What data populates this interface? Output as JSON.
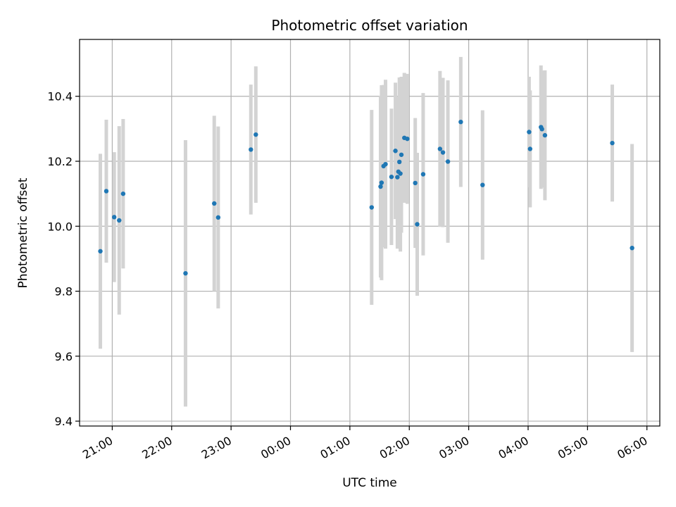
{
  "chart_data": {
    "type": "scatter",
    "title": "Photometric offset variation",
    "xlabel": "UTC time",
    "ylabel": "Photometric offset",
    "xlim": [
      "20:27",
      "06:13"
    ],
    "ylim": [
      9.385,
      10.575
    ],
    "x_ticks": [
      "21:00",
      "22:00",
      "23:00",
      "00:00",
      "01:00",
      "02:00",
      "03:00",
      "04:00",
      "05:00",
      "06:00"
    ],
    "y_ticks": [
      9.4,
      9.6,
      9.8,
      10.0,
      10.2,
      10.4
    ],
    "y_tick_labels": [
      "9.4",
      "9.6",
      "9.8",
      "10.0",
      "10.2",
      "10.4"
    ],
    "grid": true,
    "point_color": "#1f77b4",
    "errorbar_color": "#d3d3d3",
    "points": [
      {
        "x": "20:48",
        "y": 9.923,
        "err": 0.3
      },
      {
        "x": "20:54",
        "y": 10.108,
        "err": 0.22
      },
      {
        "x": "21:02",
        "y": 10.028,
        "err": 0.2
      },
      {
        "x": "21:07",
        "y": 10.018,
        "err": 0.29
      },
      {
        "x": "21:11",
        "y": 10.1,
        "err": 0.23
      },
      {
        "x": "22:14",
        "y": 9.855,
        "err": 0.41
      },
      {
        "x": "22:43",
        "y": 10.07,
        "err": 0.27
      },
      {
        "x": "22:47",
        "y": 10.027,
        "err": 0.28
      },
      {
        "x": "23:20",
        "y": 10.236,
        "err": 0.2
      },
      {
        "x": "23:25",
        "y": 10.282,
        "err": 0.21
      },
      {
        "x": "01:22",
        "y": 10.058,
        "err": 0.3
      },
      {
        "x": "01:31",
        "y": 10.122,
        "err": 0.28
      },
      {
        "x": "01:32",
        "y": 10.134,
        "err": 0.3
      },
      {
        "x": "01:34",
        "y": 10.185,
        "err": 0.25
      },
      {
        "x": "01:36",
        "y": 10.191,
        "err": 0.26
      },
      {
        "x": "01:42",
        "y": 10.152,
        "err": 0.21
      },
      {
        "x": "01:46",
        "y": 10.232,
        "err": 0.21
      },
      {
        "x": "01:48",
        "y": 10.151,
        "err": 0.22
      },
      {
        "x": "01:49",
        "y": 10.168,
        "err": 0.23
      },
      {
        "x": "01:50",
        "y": 10.198,
        "err": 0.26
      },
      {
        "x": "01:51",
        "y": 10.162,
        "err": 0.24
      },
      {
        "x": "01:52",
        "y": 10.22,
        "err": 0.24
      },
      {
        "x": "01:55",
        "y": 10.272,
        "err": 0.2
      },
      {
        "x": "01:58",
        "y": 10.269,
        "err": 0.2
      },
      {
        "x": "02:06",
        "y": 10.133,
        "err": 0.2
      },
      {
        "x": "02:08",
        "y": 10.006,
        "err": 0.22
      },
      {
        "x": "02:14",
        "y": 10.16,
        "err": 0.25
      },
      {
        "x": "02:31",
        "y": 10.238,
        "err": 0.24
      },
      {
        "x": "02:34",
        "y": 10.227,
        "err": 0.23
      },
      {
        "x": "02:39",
        "y": 10.199,
        "err": 0.25
      },
      {
        "x": "02:52",
        "y": 10.321,
        "err": 0.2
      },
      {
        "x": "03:14",
        "y": 10.127,
        "err": 0.23
      },
      {
        "x": "04:01",
        "y": 10.29,
        "err": 0.17
      },
      {
        "x": "04:02",
        "y": 10.238,
        "err": 0.18
      },
      {
        "x": "04:13",
        "y": 10.305,
        "err": 0.19
      },
      {
        "x": "04:14",
        "y": 10.299,
        "err": 0.18
      },
      {
        "x": "04:17",
        "y": 10.28,
        "err": 0.2
      },
      {
        "x": "05:25",
        "y": 10.256,
        "err": 0.18
      },
      {
        "x": "05:45",
        "y": 9.933,
        "err": 0.32
      }
    ]
  }
}
